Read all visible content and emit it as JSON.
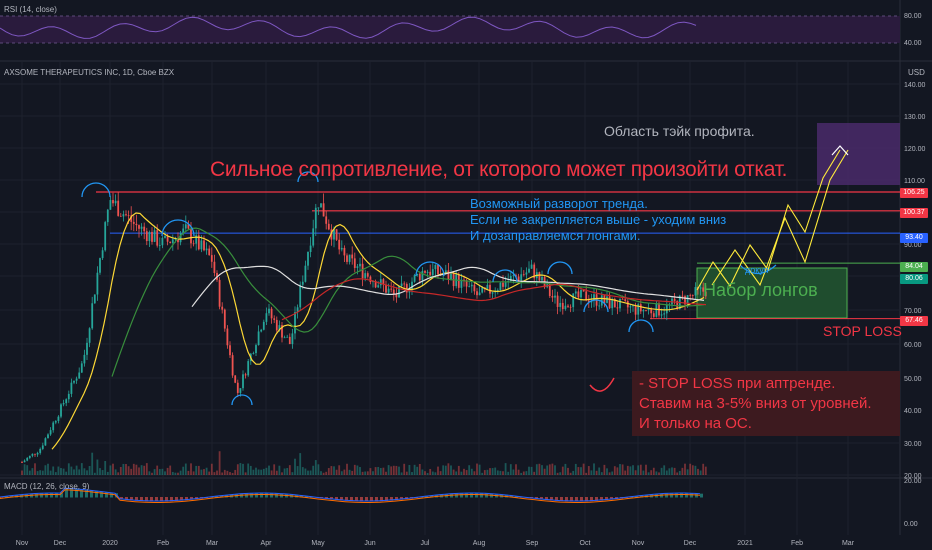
{
  "panes": {
    "rsi": {
      "title": "RSI (14, close)",
      "ticks": [
        "80.00",
        "40.00"
      ]
    },
    "main": {
      "title": "AXSOME THERAPEUTICS INC, 1D, Cboe BZX",
      "currency": "USD",
      "ticks": [
        "140.00",
        "130.00",
        "120.00",
        "110.00",
        "100.00",
        "90.00",
        "80.00",
        "70.00",
        "60.00",
        "50.00",
        "40.00",
        "30.00",
        "20.00"
      ]
    },
    "macd": {
      "title": "MACD (12, 26, close, 9)",
      "ticks": [
        "20.00",
        "0.00"
      ]
    }
  },
  "x_axis": [
    "Nov",
    "Dec",
    "2020",
    "Feb",
    "Mar",
    "Apr",
    "May",
    "Jun",
    "Jul",
    "Aug",
    "Sep",
    "Oct",
    "Nov",
    "Dec",
    "2021",
    "Feb",
    "Mar"
  ],
  "annotations": {
    "take_profit": "Область тэйк профита.",
    "resistance": "Сильное сопротивление, от которого может произойти откат.",
    "reversal": [
      "Возможный разворот тренда.",
      "Если не закрепляется выше - уходим вниз",
      "И дозаправляемся лонгами."
    ],
    "long_zone": "Набор лонгов",
    "gap": "докуп",
    "stop_loss": "STOP LOSS",
    "stop_note": [
      "- STOP LOSS при аптренде.",
      "Ставим на 3-5% вниз от уровней.",
      "И только на ОС."
    ]
  },
  "price_tags": [
    {
      "value": "106.25",
      "color": "#f23645"
    },
    {
      "value": "100.37",
      "color": "#f23645"
    },
    {
      "value": "93.40",
      "color": "#2962ff"
    },
    {
      "value": "84.04",
      "color": "#4caf50"
    },
    {
      "value": "80.06",
      "color": "#089981"
    },
    {
      "value": "67.46",
      "color": "#f23645"
    }
  ],
  "colors": {
    "background": "#131722",
    "resistance": "#f23645",
    "support": "#4caf50",
    "blue_level": "#2962ff",
    "annotation_red": "#f23645",
    "annotation_blue": "#2196f3",
    "take_profit_fill": "#4a2a6a",
    "long_zone_fill": "#1f4d2e",
    "stop_note_fill": "#3d1a1f"
  },
  "chart_data": {
    "type": "line",
    "series_type": "candlestick",
    "x": [
      "2019-11-01",
      "2019-11-15",
      "2019-12-01",
      "2019-12-15",
      "2020-01-01",
      "2020-01-15",
      "2020-02-01",
      "2020-02-15",
      "2020-03-01",
      "2020-03-15",
      "2020-04-01",
      "2020-04-15",
      "2020-05-01",
      "2020-05-15",
      "2020-06-01",
      "2020-06-15",
      "2020-07-01",
      "2020-07-15",
      "2020-08-01",
      "2020-08-15",
      "2020-09-01",
      "2020-09-15",
      "2020-10-01",
      "2020-10-15",
      "2020-11-01",
      "2020-11-15",
      "2020-12-01",
      "2020-12-10"
    ],
    "close": [
      24,
      28,
      40,
      55,
      104,
      96,
      90,
      94,
      85,
      45,
      70,
      60,
      104,
      86,
      80,
      74,
      82,
      80,
      74,
      78,
      82,
      72,
      74,
      72,
      70,
      70,
      74,
      76
    ],
    "levels": [
      106.25,
      100.37,
      93.4,
      84.04,
      67.46
    ],
    "ylim": [
      20,
      140
    ],
    "rsi": {
      "ylim": [
        20,
        100
      ],
      "levels": [
        80,
        40
      ]
    },
    "macd": {
      "ylim": [
        -5,
        25
      ]
    }
  }
}
